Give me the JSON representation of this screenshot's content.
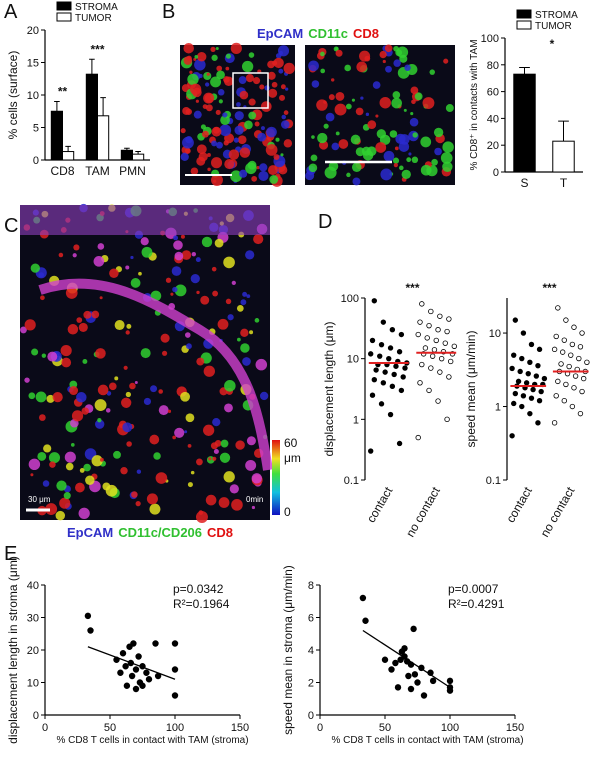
{
  "panel_labels": [
    "A",
    "B",
    "C",
    "D",
    "E"
  ],
  "images": {
    "b_labels": [
      "EpCAM",
      "CD11c",
      "CD8"
    ],
    "c_colorbar": {
      "max": 60,
      "unit": "μm",
      "min": 0
    },
    "c_scale": "30 μm",
    "c_time": "0min",
    "c_labels": [
      "EpCAM",
      "CD11c/CD206",
      "CD8"
    ]
  },
  "chart_data": [
    {
      "type": "bar",
      "ylabel": "% cells (surface)",
      "categories": [
        "CD8",
        "TAM",
        "PMN"
      ],
      "series": [
        {
          "name": "STROMA",
          "color": "#000000",
          "values": [
            7.5,
            13.2,
            1.5
          ],
          "errors": [
            1.5,
            2.3,
            0.3
          ]
        },
        {
          "name": "TUMOR",
          "color": "#ffffff",
          "values": [
            1.3,
            6.8,
            0.9
          ],
          "errors": [
            0.8,
            2.8,
            0.4
          ]
        }
      ],
      "ylim": [
        0,
        20
      ],
      "yticks": [
        0,
        5,
        10,
        15,
        20
      ],
      "significance": [
        "**",
        "***",
        null
      ],
      "legend": "top-left"
    },
    {
      "type": "bar",
      "ylabel": "% CD8⁺ in contacts with TAM",
      "categories": [
        "S",
        "T"
      ],
      "series": [
        {
          "name": "STROMA",
          "color": "#000000"
        },
        {
          "name": "TUMOR",
          "color": "#ffffff"
        }
      ],
      "values": [
        73,
        23
      ],
      "errors": [
        5,
        15
      ],
      "colors": [
        "#000000",
        "#ffffff"
      ],
      "ylim": [
        0,
        100
      ],
      "yticks": [
        0,
        20,
        40,
        60,
        80,
        100
      ],
      "significance": "*",
      "legend": "top-left"
    },
    {
      "type": "dotplot",
      "ylabel": "displacement length (μm)",
      "log": true,
      "ylim": [
        0.1,
        100
      ],
      "yticks": [
        0.1,
        1,
        10,
        100
      ],
      "significance": "***",
      "mean_color": "#e02020",
      "groups": [
        {
          "name": "contact",
          "marker": "filled",
          "mean": 8.5,
          "values": [
            0.3,
            0.4,
            1.2,
            1.8,
            2.5,
            3,
            3.5,
            4,
            4.5,
            5,
            5.5,
            6,
            6.5,
            7,
            7.5,
            8,
            8,
            8.5,
            9,
            10,
            11,
            12,
            13,
            15,
            17,
            20,
            25,
            30,
            40,
            90
          ]
        },
        {
          "name": "no contact",
          "marker": "open",
          "mean": 12.5,
          "values": [
            0.5,
            1,
            2,
            3,
            4,
            5,
            6,
            7,
            8,
            9,
            10,
            11,
            12,
            12,
            13,
            14,
            15,
            16,
            18,
            20,
            22,
            25,
            28,
            30,
            35,
            40,
            45,
            50,
            60,
            80
          ]
        }
      ]
    },
    {
      "type": "dotplot",
      "ylabel": "speed mean (μm/min)",
      "log": true,
      "ylim": [
        0.1,
        30
      ],
      "yticks": [
        0.1,
        1,
        10
      ],
      "significance": "***",
      "mean_color": "#e02020",
      "groups": [
        {
          "name": "contact",
          "marker": "filled",
          "mean": 1.9,
          "values": [
            0.4,
            0.6,
            0.8,
            1,
            1.1,
            1.2,
            1.3,
            1.4,
            1.5,
            1.6,
            1.7,
            1.8,
            1.9,
            2,
            2,
            2.1,
            2.2,
            2.4,
            2.6,
            2.8,
            3,
            3.3,
            3.6,
            4,
            4.5,
            5,
            6,
            7,
            10,
            15
          ]
        },
        {
          "name": "no contact",
          "marker": "open",
          "mean": 3,
          "values": [
            0.6,
            0.8,
            1,
            1.2,
            1.4,
            1.6,
            1.8,
            2,
            2.2,
            2.4,
            2.6,
            2.8,
            3,
            3,
            3.2,
            3.5,
            3.8,
            4,
            4.5,
            5,
            5.5,
            6,
            6.5,
            7,
            8,
            9,
            10,
            12,
            15,
            22
          ]
        }
      ]
    },
    {
      "type": "scatter",
      "xlabel": "% CD8 T cells in contact with TAM (stroma)",
      "ylabel": "displacement length in stroma (μm)",
      "x": [
        33,
        35,
        55,
        58,
        60,
        62,
        63,
        65,
        66,
        67,
        68,
        70,
        70,
        72,
        73,
        75,
        75,
        78,
        80,
        85,
        87,
        100,
        100,
        100
      ],
      "y": [
        30.5,
        26,
        17,
        13,
        19,
        15,
        9,
        21,
        16,
        12,
        22,
        14,
        8,
        18,
        10,
        15,
        9,
        13,
        11,
        22,
        12,
        22,
        14,
        6
      ],
      "fit": {
        "x": [
          33,
          100
        ],
        "y": [
          21,
          11
        ]
      },
      "color": "#000000",
      "xlim": [
        0,
        150
      ],
      "xticks": [
        0,
        50,
        100,
        150
      ],
      "ylim": [
        0,
        40
      ],
      "yticks": [
        0,
        10,
        20,
        30,
        40
      ],
      "annotations": [
        "p=0.0342",
        "R²=0.1964"
      ]
    },
    {
      "type": "scatter",
      "xlabel": "% CD8 T cells in contact with TAM (stroma)",
      "ylabel": "speed mean in stroma (μm/min)",
      "x": [
        33,
        35,
        50,
        55,
        58,
        60,
        62,
        63,
        65,
        65,
        67,
        68,
        70,
        70,
        72,
        73,
        75,
        78,
        80,
        85,
        87,
        100,
        100,
        100
      ],
      "y": [
        7.2,
        5.8,
        3.4,
        2.8,
        3.2,
        1.7,
        3.4,
        3.9,
        3.6,
        4.1,
        3.3,
        2.4,
        3.1,
        1.6,
        5.3,
        2.5,
        2,
        2.9,
        1.2,
        2.6,
        2.1,
        2.1,
        1.7,
        1.5
      ],
      "fit": {
        "x": [
          33,
          100
        ],
        "y": [
          5.2,
          1.7
        ]
      },
      "color": "#000000",
      "xlim": [
        0,
        150
      ],
      "xticks": [
        0,
        50,
        100,
        150
      ],
      "ylim": [
        0,
        8
      ],
      "yticks": [
        0,
        2,
        4,
        6,
        8
      ],
      "annotations": [
        "p=0.0007",
        "R²=0.4291"
      ]
    }
  ]
}
